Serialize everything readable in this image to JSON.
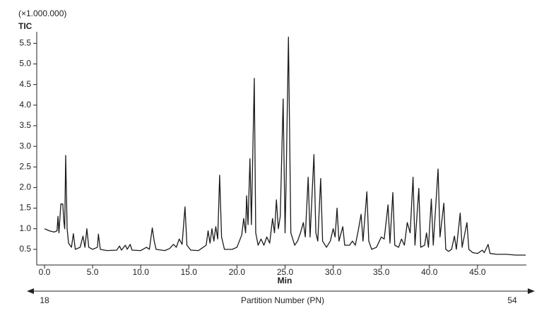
{
  "chart_data": {
    "type": "line",
    "title": "(×1.000.000)",
    "y_label": "TIC",
    "x_label": "Min",
    "secondary_axis": {
      "label": "Partition Number (PN)",
      "start": 18,
      "end": 54
    },
    "xlim": [
      0,
      50
    ],
    "ylim": [
      0.12,
      5.78
    ],
    "xticks": [
      {
        "value": 0,
        "label": "0.0"
      },
      {
        "value": 5,
        "label": "5.0"
      },
      {
        "value": 10,
        "label": "10.0"
      },
      {
        "value": 15,
        "label": "15.0"
      },
      {
        "value": 20,
        "label": "20.0"
      },
      {
        "value": 25,
        "label": "25.0"
      },
      {
        "value": 30,
        "label": "30.0"
      },
      {
        "value": 35,
        "label": "35.0"
      },
      {
        "value": 40,
        "label": "40.0"
      },
      {
        "value": 45,
        "label": "45.0"
      }
    ],
    "yticks": [
      0.5,
      {
        "value": 1,
        "label": "1.0"
      },
      1.5,
      {
        "value": 2,
        "label": "2.0"
      },
      2.5,
      {
        "value": 3,
        "label": "3.0"
      },
      3.5,
      {
        "value": 4,
        "label": "4.0"
      },
      4.5,
      {
        "value": 5,
        "label": "5.0"
      },
      5.5
    ],
    "series": [
      {
        "color": "#1a1a1a",
        "x": [
          0.0,
          0.5,
          1.0,
          1.3,
          1.4,
          1.5,
          1.7,
          1.9,
          2.0,
          2.1,
          2.2,
          2.35,
          2.5,
          2.8,
          3.0,
          3.2,
          3.7,
          4.0,
          4.2,
          4.4,
          4.6,
          5.0,
          5.5,
          5.6,
          5.8,
          6.5,
          7.5,
          7.8,
          8.0,
          8.4,
          8.6,
          8.9,
          9.1,
          10.0,
          10.6,
          10.9,
          11.2,
          11.4,
          11.6,
          12.5,
          13.0,
          13.4,
          13.7,
          14.0,
          14.3,
          14.6,
          14.8,
          15.2,
          16.0,
          16.8,
          17.0,
          17.2,
          17.4,
          17.6,
          17.8,
          18.0,
          18.2,
          18.4,
          18.7,
          19.5,
          20.0,
          20.5,
          20.7,
          20.9,
          21.0,
          21.15,
          21.35,
          21.5,
          21.8,
          21.95,
          22.2,
          22.5,
          22.8,
          23.1,
          23.4,
          23.7,
          23.9,
          24.1,
          24.3,
          24.5,
          24.8,
          25.0,
          25.1,
          25.35,
          25.6,
          26.0,
          26.3,
          26.6,
          26.9,
          27.1,
          27.4,
          27.6,
          28.0,
          28.2,
          28.4,
          28.7,
          28.9,
          29.3,
          29.7,
          30.0,
          30.2,
          30.4,
          30.6,
          31.0,
          31.2,
          31.7,
          32.0,
          32.3,
          32.6,
          32.9,
          33.1,
          33.5,
          33.7,
          34.0,
          34.5,
          35.0,
          35.3,
          35.7,
          35.9,
          36.2,
          36.4,
          36.8,
          37.1,
          37.4,
          37.7,
          38.0,
          38.3,
          38.5,
          38.9,
          39.1,
          39.5,
          39.7,
          39.9,
          40.2,
          40.4,
          40.9,
          41.1,
          41.5,
          41.7,
          42.0,
          42.3,
          42.6,
          42.8,
          43.2,
          43.4,
          43.9,
          44.1,
          44.5,
          45.0,
          45.5,
          45.7,
          46.1,
          46.3,
          47.0,
          48.0,
          49.0,
          50.0
        ],
        "values": [
          1.0,
          0.95,
          0.92,
          0.95,
          1.3,
          0.9,
          1.6,
          1.6,
          1.2,
          1.0,
          2.78,
          1.0,
          0.65,
          0.55,
          0.88,
          0.5,
          0.55,
          0.82,
          0.55,
          1.0,
          0.55,
          0.5,
          0.55,
          0.87,
          0.5,
          0.47,
          0.48,
          0.58,
          0.48,
          0.6,
          0.5,
          0.62,
          0.48,
          0.47,
          0.55,
          0.5,
          1.02,
          0.7,
          0.5,
          0.47,
          0.52,
          0.62,
          0.55,
          0.75,
          0.62,
          1.53,
          0.6,
          0.48,
          0.47,
          0.6,
          0.95,
          0.65,
          1.0,
          0.7,
          1.05,
          0.75,
          2.3,
          0.8,
          0.5,
          0.5,
          0.55,
          0.85,
          1.25,
          0.9,
          1.8,
          1.1,
          2.7,
          1.1,
          4.65,
          0.9,
          0.6,
          0.75,
          0.6,
          0.8,
          0.65,
          1.25,
          0.9,
          1.7,
          1.0,
          1.3,
          4.15,
          0.9,
          2.0,
          5.65,
          0.9,
          0.6,
          0.7,
          0.9,
          1.15,
          0.8,
          2.25,
          0.8,
          2.8,
          0.9,
          0.7,
          2.22,
          0.7,
          0.55,
          0.7,
          1.0,
          0.8,
          1.5,
          0.7,
          1.05,
          0.6,
          0.6,
          0.7,
          0.6,
          0.95,
          1.35,
          0.7,
          1.9,
          0.7,
          0.5,
          0.55,
          0.8,
          0.75,
          1.58,
          0.65,
          1.88,
          0.6,
          0.55,
          0.75,
          0.6,
          1.15,
          0.9,
          2.25,
          0.6,
          1.98,
          0.55,
          0.6,
          0.9,
          0.55,
          1.72,
          0.6,
          2.45,
          0.8,
          1.62,
          0.5,
          0.45,
          0.5,
          0.82,
          0.5,
          1.38,
          0.55,
          1.15,
          0.5,
          0.42,
          0.4,
          0.48,
          0.42,
          0.62,
          0.4,
          0.38,
          0.38,
          0.36,
          0.36
        ]
      }
    ]
  }
}
